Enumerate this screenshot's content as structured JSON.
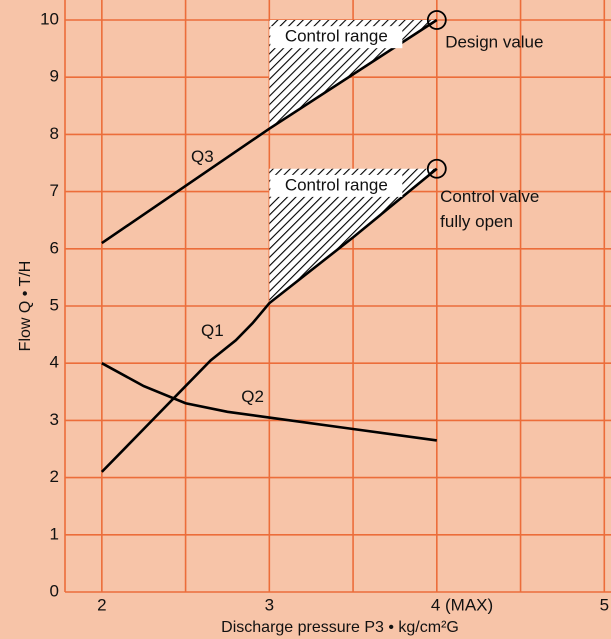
{
  "chart_data": {
    "type": "line",
    "xlabel": "Discharge pressure P3 • kg/cm²G",
    "ylabel": "Flow Q • T/H",
    "xlim": [
      1.78,
      5.04
    ],
    "ylim": [
      0,
      10
    ],
    "xticks": [
      2,
      3,
      {
        "value": 4,
        "label": "4 (MAX)"
      },
      5
    ],
    "x_minor_grid": [
      2.5,
      3.5,
      4.5
    ],
    "yticks": [
      0,
      1,
      2,
      3,
      4,
      5,
      6,
      7,
      8,
      9,
      10
    ],
    "grid": true,
    "series": [
      {
        "name": "Q1",
        "color": "#000000",
        "x": [
          2,
          2.25,
          2.5,
          2.65,
          2.8,
          2.9,
          3,
          3.5,
          4
        ],
        "values": [
          2.1,
          2.85,
          3.6,
          4.05,
          4.4,
          4.7,
          5.05,
          6.2,
          7.4
        ]
      },
      {
        "name": "Q2",
        "color": "#000000",
        "x": [
          2,
          2.25,
          2.5,
          2.75,
          3,
          3.5,
          4
        ],
        "values": [
          4.0,
          3.6,
          3.3,
          3.15,
          3.05,
          2.85,
          2.65
        ]
      },
      {
        "name": "Q3",
        "color": "#000000",
        "x": [
          2,
          3,
          4
        ],
        "values": [
          6.1,
          8.1,
          10
        ]
      }
    ],
    "annotations": [
      {
        "text": "Control range"
      },
      {
        "text": "Control range"
      },
      {
        "text": "Design value"
      },
      {
        "text": [
          "Control valve",
          "fully open"
        ]
      }
    ]
  }
}
